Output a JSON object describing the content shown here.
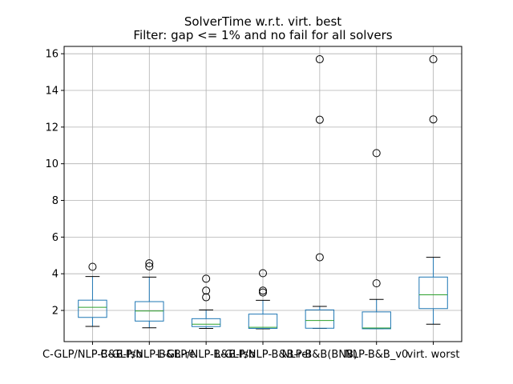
{
  "chart_data": {
    "type": "box",
    "title": "SolverTime w.r.t. virt. best",
    "subtitle": "Filter: gap <= 1% and no fail for all solvers",
    "xlabel": "",
    "ylabel": "",
    "ylim": [
      0.3,
      16.4
    ],
    "yticks": [
      2,
      4,
      6,
      8,
      10,
      12,
      14,
      16
    ],
    "grid": true,
    "categories": [
      "C-GLP/NLP-B&B-fsb",
      "C-GLP/NLP-B&B-rel",
      "L-GLP/NLP-B&B-fsb",
      "L-GLP/NLP-B&B-rel",
      "NLP-B&B(BNB)",
      "NLP-B&B_v0",
      "virt. worst"
    ],
    "boxes": [
      {
        "whislo": 1.13,
        "q1": 1.62,
        "med": 2.17,
        "q3": 2.56,
        "whishi": 3.85,
        "fliers": [
          4.38
        ]
      },
      {
        "whislo": 1.05,
        "q1": 1.42,
        "med": 1.97,
        "q3": 2.48,
        "whishi": 3.82,
        "fliers": [
          4.4,
          4.57
        ]
      },
      {
        "whislo": 1.02,
        "q1": 1.12,
        "med": 1.25,
        "q3": 1.55,
        "whishi": 2.03,
        "fliers": [
          2.72,
          3.08,
          3.73
        ]
      },
      {
        "whislo": 1.0,
        "q1": 1.02,
        "med": 1.08,
        "q3": 1.8,
        "whishi": 2.55,
        "fliers": [
          2.98,
          3.08,
          4.03
        ]
      },
      {
        "whislo": 1.02,
        "q1": 1.03,
        "med": 1.45,
        "q3": 2.03,
        "whishi": 2.22,
        "fliers": [
          4.9,
          12.4,
          15.7
        ]
      },
      {
        "whislo": 1.0,
        "q1": 1.0,
        "med": 1.04,
        "q3": 1.92,
        "whishi": 2.6,
        "fliers": [
          3.48,
          10.58
        ]
      },
      {
        "whislo": 1.25,
        "q1": 2.1,
        "med": 2.85,
        "q3": 3.82,
        "whishi": 4.9,
        "fliers": [
          12.42,
          15.7
        ]
      }
    ],
    "colors": {
      "box": "#1f77b4",
      "median": "#2ca02c",
      "grid": "#b0b0b0"
    }
  }
}
